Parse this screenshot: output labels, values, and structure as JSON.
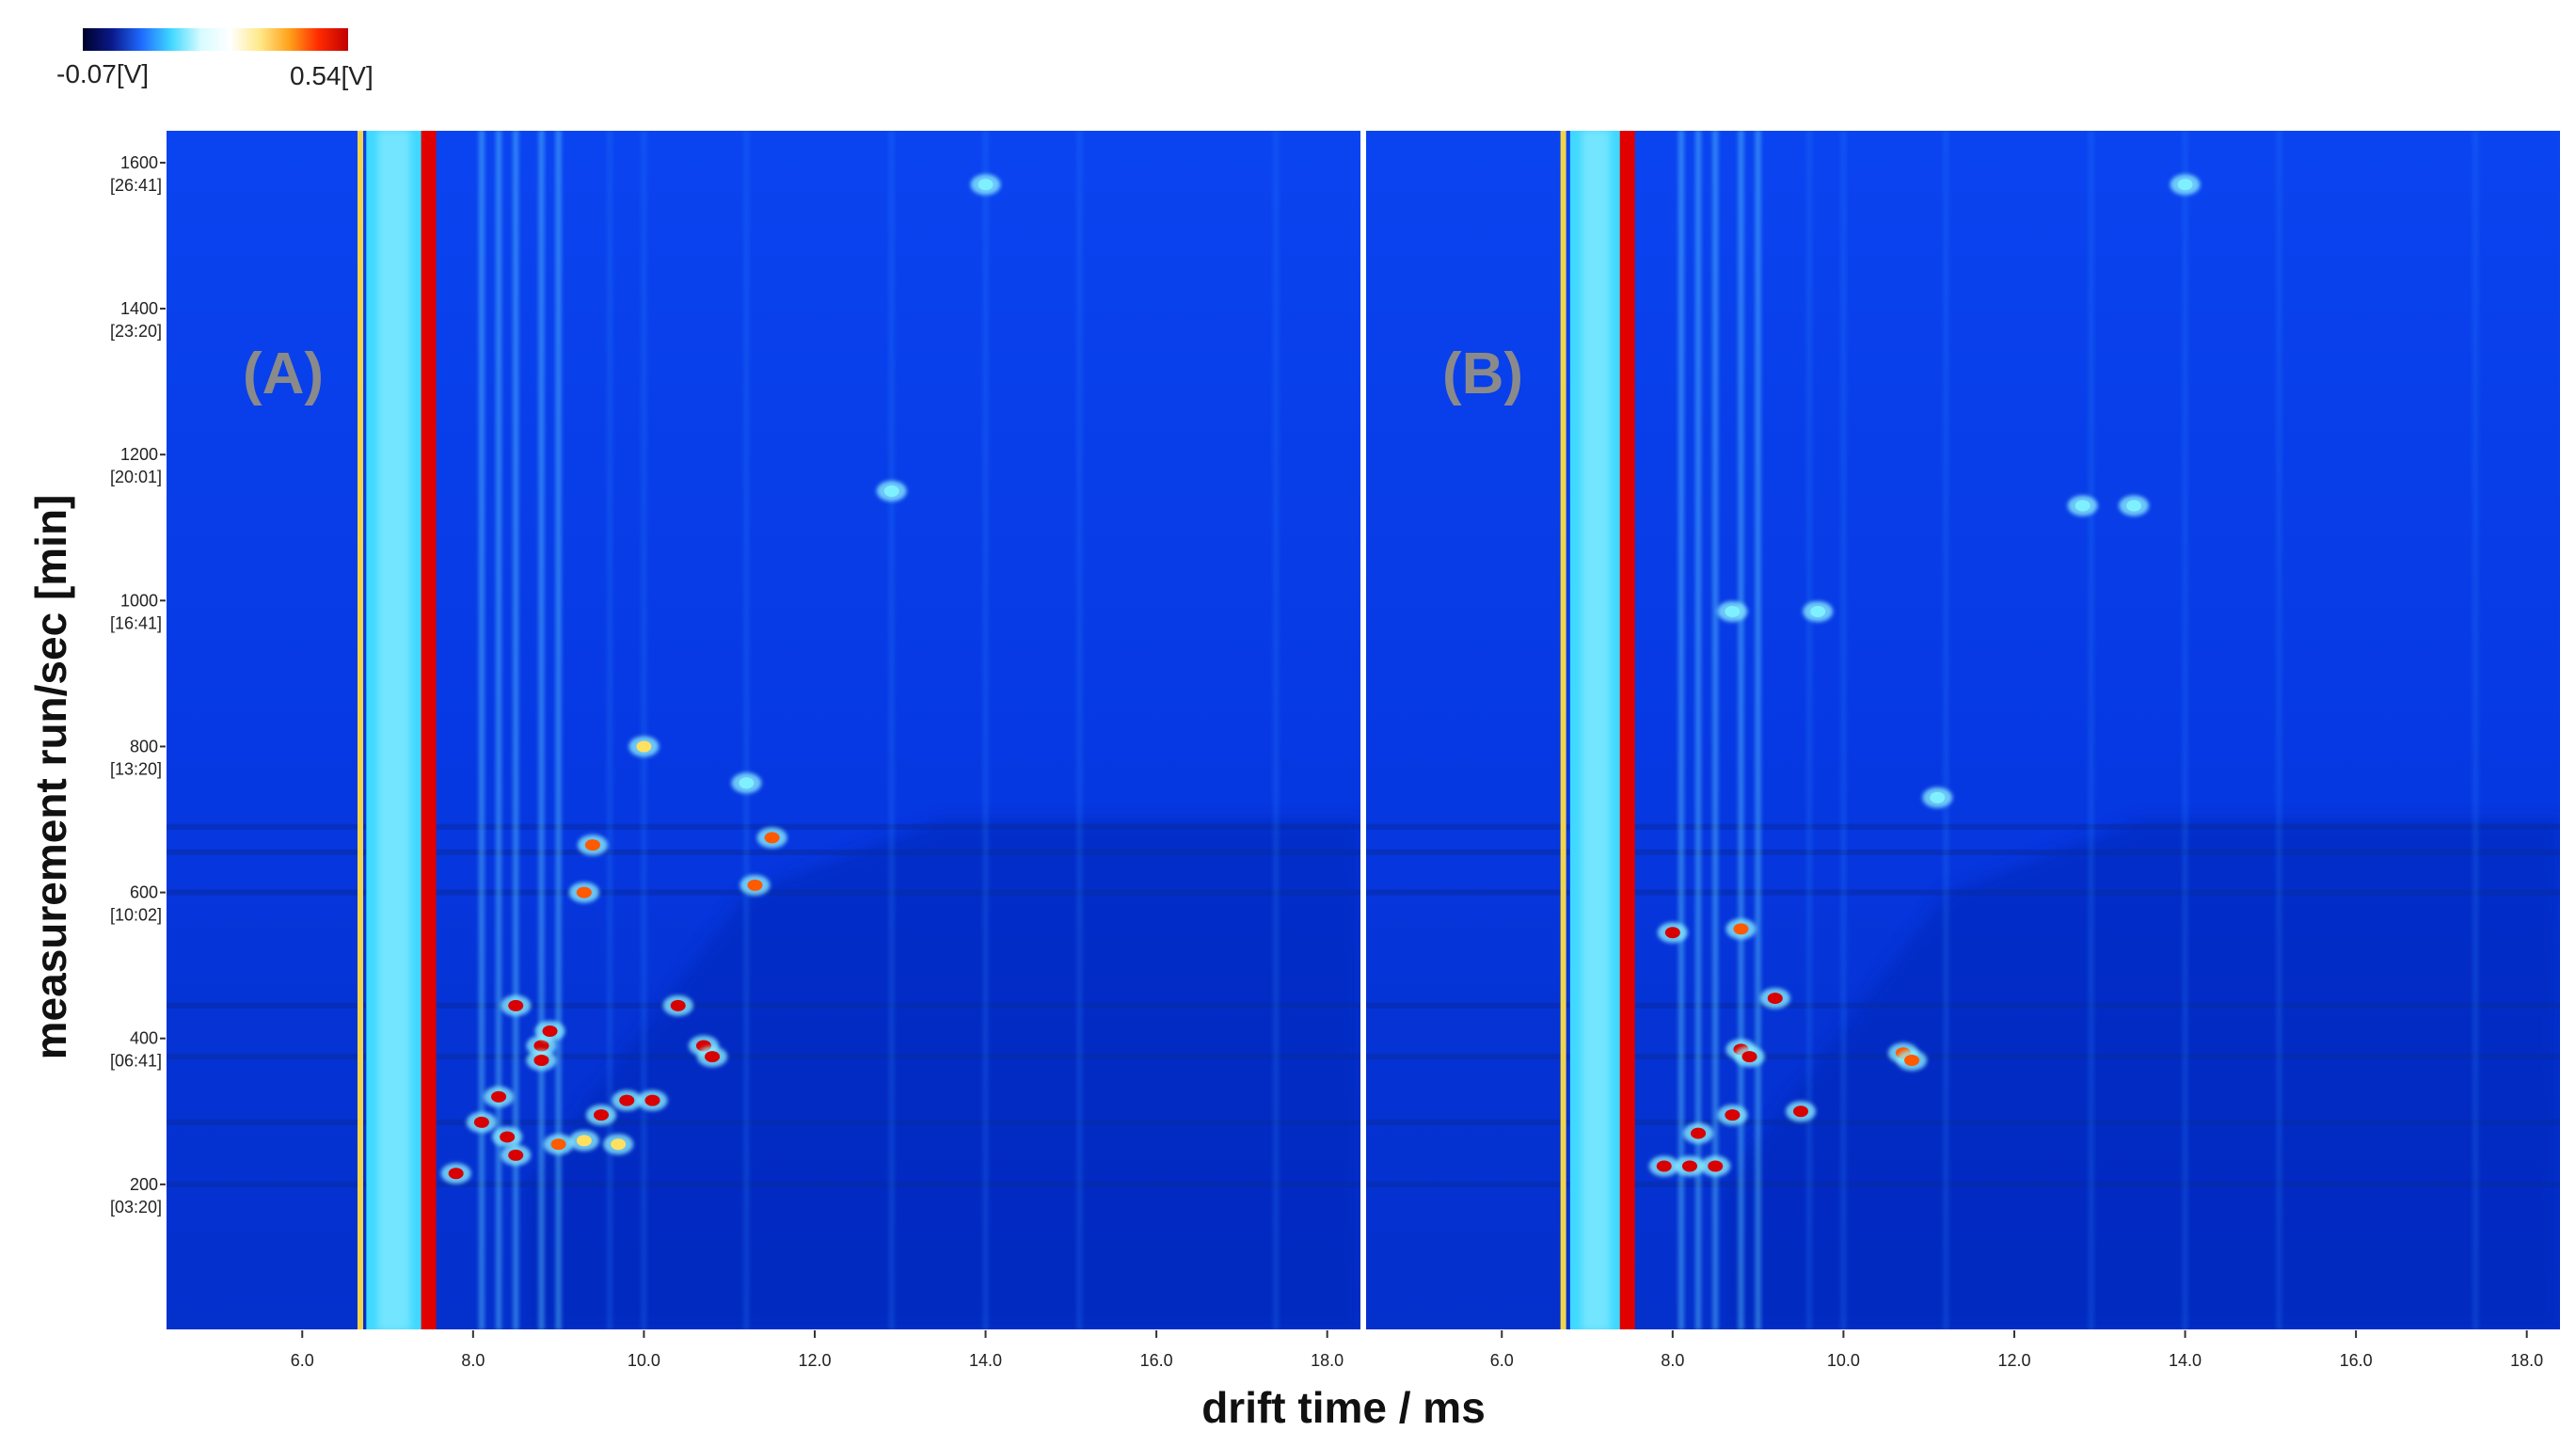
{
  "colorbar": {
    "min_label": "-0.07[V]",
    "max_label": "0.54[V]",
    "stops": [
      "#00002a",
      "#0a1a8c",
      "#1f6bff",
      "#40d8ff",
      "#d6fbff",
      "#ffffff",
      "#ffe98a",
      "#ffa21a",
      "#ff2a00",
      "#c00000"
    ]
  },
  "axes": {
    "xlabel": "drift time / ms",
    "ylabel": "measurement run/sec [min]",
    "x_ticks": [
      "6.0",
      "8.0",
      "10.0",
      "12.0",
      "14.0",
      "16.0",
      "18.0"
    ],
    "x_tick_values": [
      6,
      8,
      10,
      12,
      14,
      16,
      18
    ],
    "y_ticks": [
      {
        "value": 1600,
        "label": "1600",
        "sub": "[26:41]"
      },
      {
        "value": 1400,
        "label": "1400",
        "sub": "[23:20]"
      },
      {
        "value": 1200,
        "label": "1200",
        "sub": "[20:01]"
      },
      {
        "value": 1000,
        "label": "1000",
        "sub": "[16:41]"
      },
      {
        "value": 800,
        "label": "800",
        "sub": "[13:20]"
      },
      {
        "value": 600,
        "label": "600",
        "sub": "[10:02]"
      },
      {
        "value": 400,
        "label": "400",
        "sub": "[06:41]"
      },
      {
        "value": 200,
        "label": "200",
        "sub": "[03:20]"
      }
    ],
    "xlim": [
      4.4,
      18.4
    ],
    "ylim": [
      0,
      1645
    ]
  },
  "chart_data": [
    {
      "type": "heatmap",
      "panel_label": "(A)",
      "xlabel": "drift time / ms",
      "ylabel": "measurement run/sec [min]",
      "xlim": [
        4.4,
        18.4
      ],
      "ylim": [
        0,
        1645
      ],
      "colorbar_range": [
        -0.07,
        0.54
      ],
      "reactant_ion_peak": {
        "x_start": 6.75,
        "x_end": 7.4,
        "red_line_x": 7.48,
        "yellow_line_x": 6.68
      },
      "signals": [
        {
          "x": 10.0,
          "y": 800,
          "v": 0.35
        },
        {
          "x": 9.4,
          "y": 665,
          "v": 0.45
        },
        {
          "x": 9.3,
          "y": 600,
          "v": 0.4
        },
        {
          "x": 11.3,
          "y": 610,
          "v": 0.45
        },
        {
          "x": 11.5,
          "y": 675,
          "v": 0.4
        },
        {
          "x": 10.4,
          "y": 445,
          "v": 0.54
        },
        {
          "x": 10.7,
          "y": 390,
          "v": 0.54
        },
        {
          "x": 10.8,
          "y": 375,
          "v": 0.54
        },
        {
          "x": 8.5,
          "y": 445,
          "v": 0.54
        },
        {
          "x": 8.8,
          "y": 390,
          "v": 0.54
        },
        {
          "x": 8.9,
          "y": 410,
          "v": 0.54
        },
        {
          "x": 8.8,
          "y": 370,
          "v": 0.54
        },
        {
          "x": 8.3,
          "y": 320,
          "v": 0.54
        },
        {
          "x": 9.5,
          "y": 295,
          "v": 0.54
        },
        {
          "x": 9.8,
          "y": 315,
          "v": 0.54
        },
        {
          "x": 10.1,
          "y": 315,
          "v": 0.54
        },
        {
          "x": 8.5,
          "y": 240,
          "v": 0.54
        },
        {
          "x": 8.4,
          "y": 265,
          "v": 0.54
        },
        {
          "x": 8.1,
          "y": 285,
          "v": 0.54
        },
        {
          "x": 7.8,
          "y": 215,
          "v": 0.54
        },
        {
          "x": 9.0,
          "y": 255,
          "v": 0.45
        },
        {
          "x": 9.3,
          "y": 260,
          "v": 0.35
        },
        {
          "x": 9.7,
          "y": 255,
          "v": 0.35
        },
        {
          "x": 12.9,
          "y": 1150,
          "v": 0.3
        },
        {
          "x": 11.2,
          "y": 750,
          "v": 0.3
        },
        {
          "x": 14.0,
          "y": 1570,
          "v": 0.2
        }
      ]
    },
    {
      "type": "heatmap",
      "panel_label": "(B)",
      "xlabel": "drift time / ms",
      "ylabel": "measurement run/sec [min]",
      "xlim": [
        4.4,
        18.4
      ],
      "ylim": [
        0,
        1645
      ],
      "colorbar_range": [
        -0.07,
        0.54
      ],
      "reactant_ion_peak": {
        "x_start": 6.8,
        "x_end": 7.4,
        "red_line_x": 7.47,
        "yellow_line_x": 6.72
      },
      "signals": [
        {
          "x": 8.0,
          "y": 545,
          "v": 0.54
        },
        {
          "x": 8.8,
          "y": 550,
          "v": 0.4
        },
        {
          "x": 9.2,
          "y": 455,
          "v": 0.54
        },
        {
          "x": 8.8,
          "y": 385,
          "v": 0.54
        },
        {
          "x": 8.9,
          "y": 375,
          "v": 0.54
        },
        {
          "x": 10.7,
          "y": 380,
          "v": 0.45
        },
        {
          "x": 10.8,
          "y": 370,
          "v": 0.45
        },
        {
          "x": 8.3,
          "y": 270,
          "v": 0.54
        },
        {
          "x": 8.7,
          "y": 295,
          "v": 0.54
        },
        {
          "x": 9.5,
          "y": 300,
          "v": 0.54
        },
        {
          "x": 8.5,
          "y": 225,
          "v": 0.54
        },
        {
          "x": 7.9,
          "y": 225,
          "v": 0.54
        },
        {
          "x": 8.2,
          "y": 225,
          "v": 0.54
        },
        {
          "x": 8.7,
          "y": 985,
          "v": 0.3
        },
        {
          "x": 9.7,
          "y": 985,
          "v": 0.3
        },
        {
          "x": 11.1,
          "y": 730,
          "v": 0.3
        },
        {
          "x": 12.8,
          "y": 1130,
          "v": 0.25
        },
        {
          "x": 13.4,
          "y": 1130,
          "v": 0.2
        },
        {
          "x": 14.0,
          "y": 1570,
          "v": 0.2
        }
      ]
    }
  ]
}
